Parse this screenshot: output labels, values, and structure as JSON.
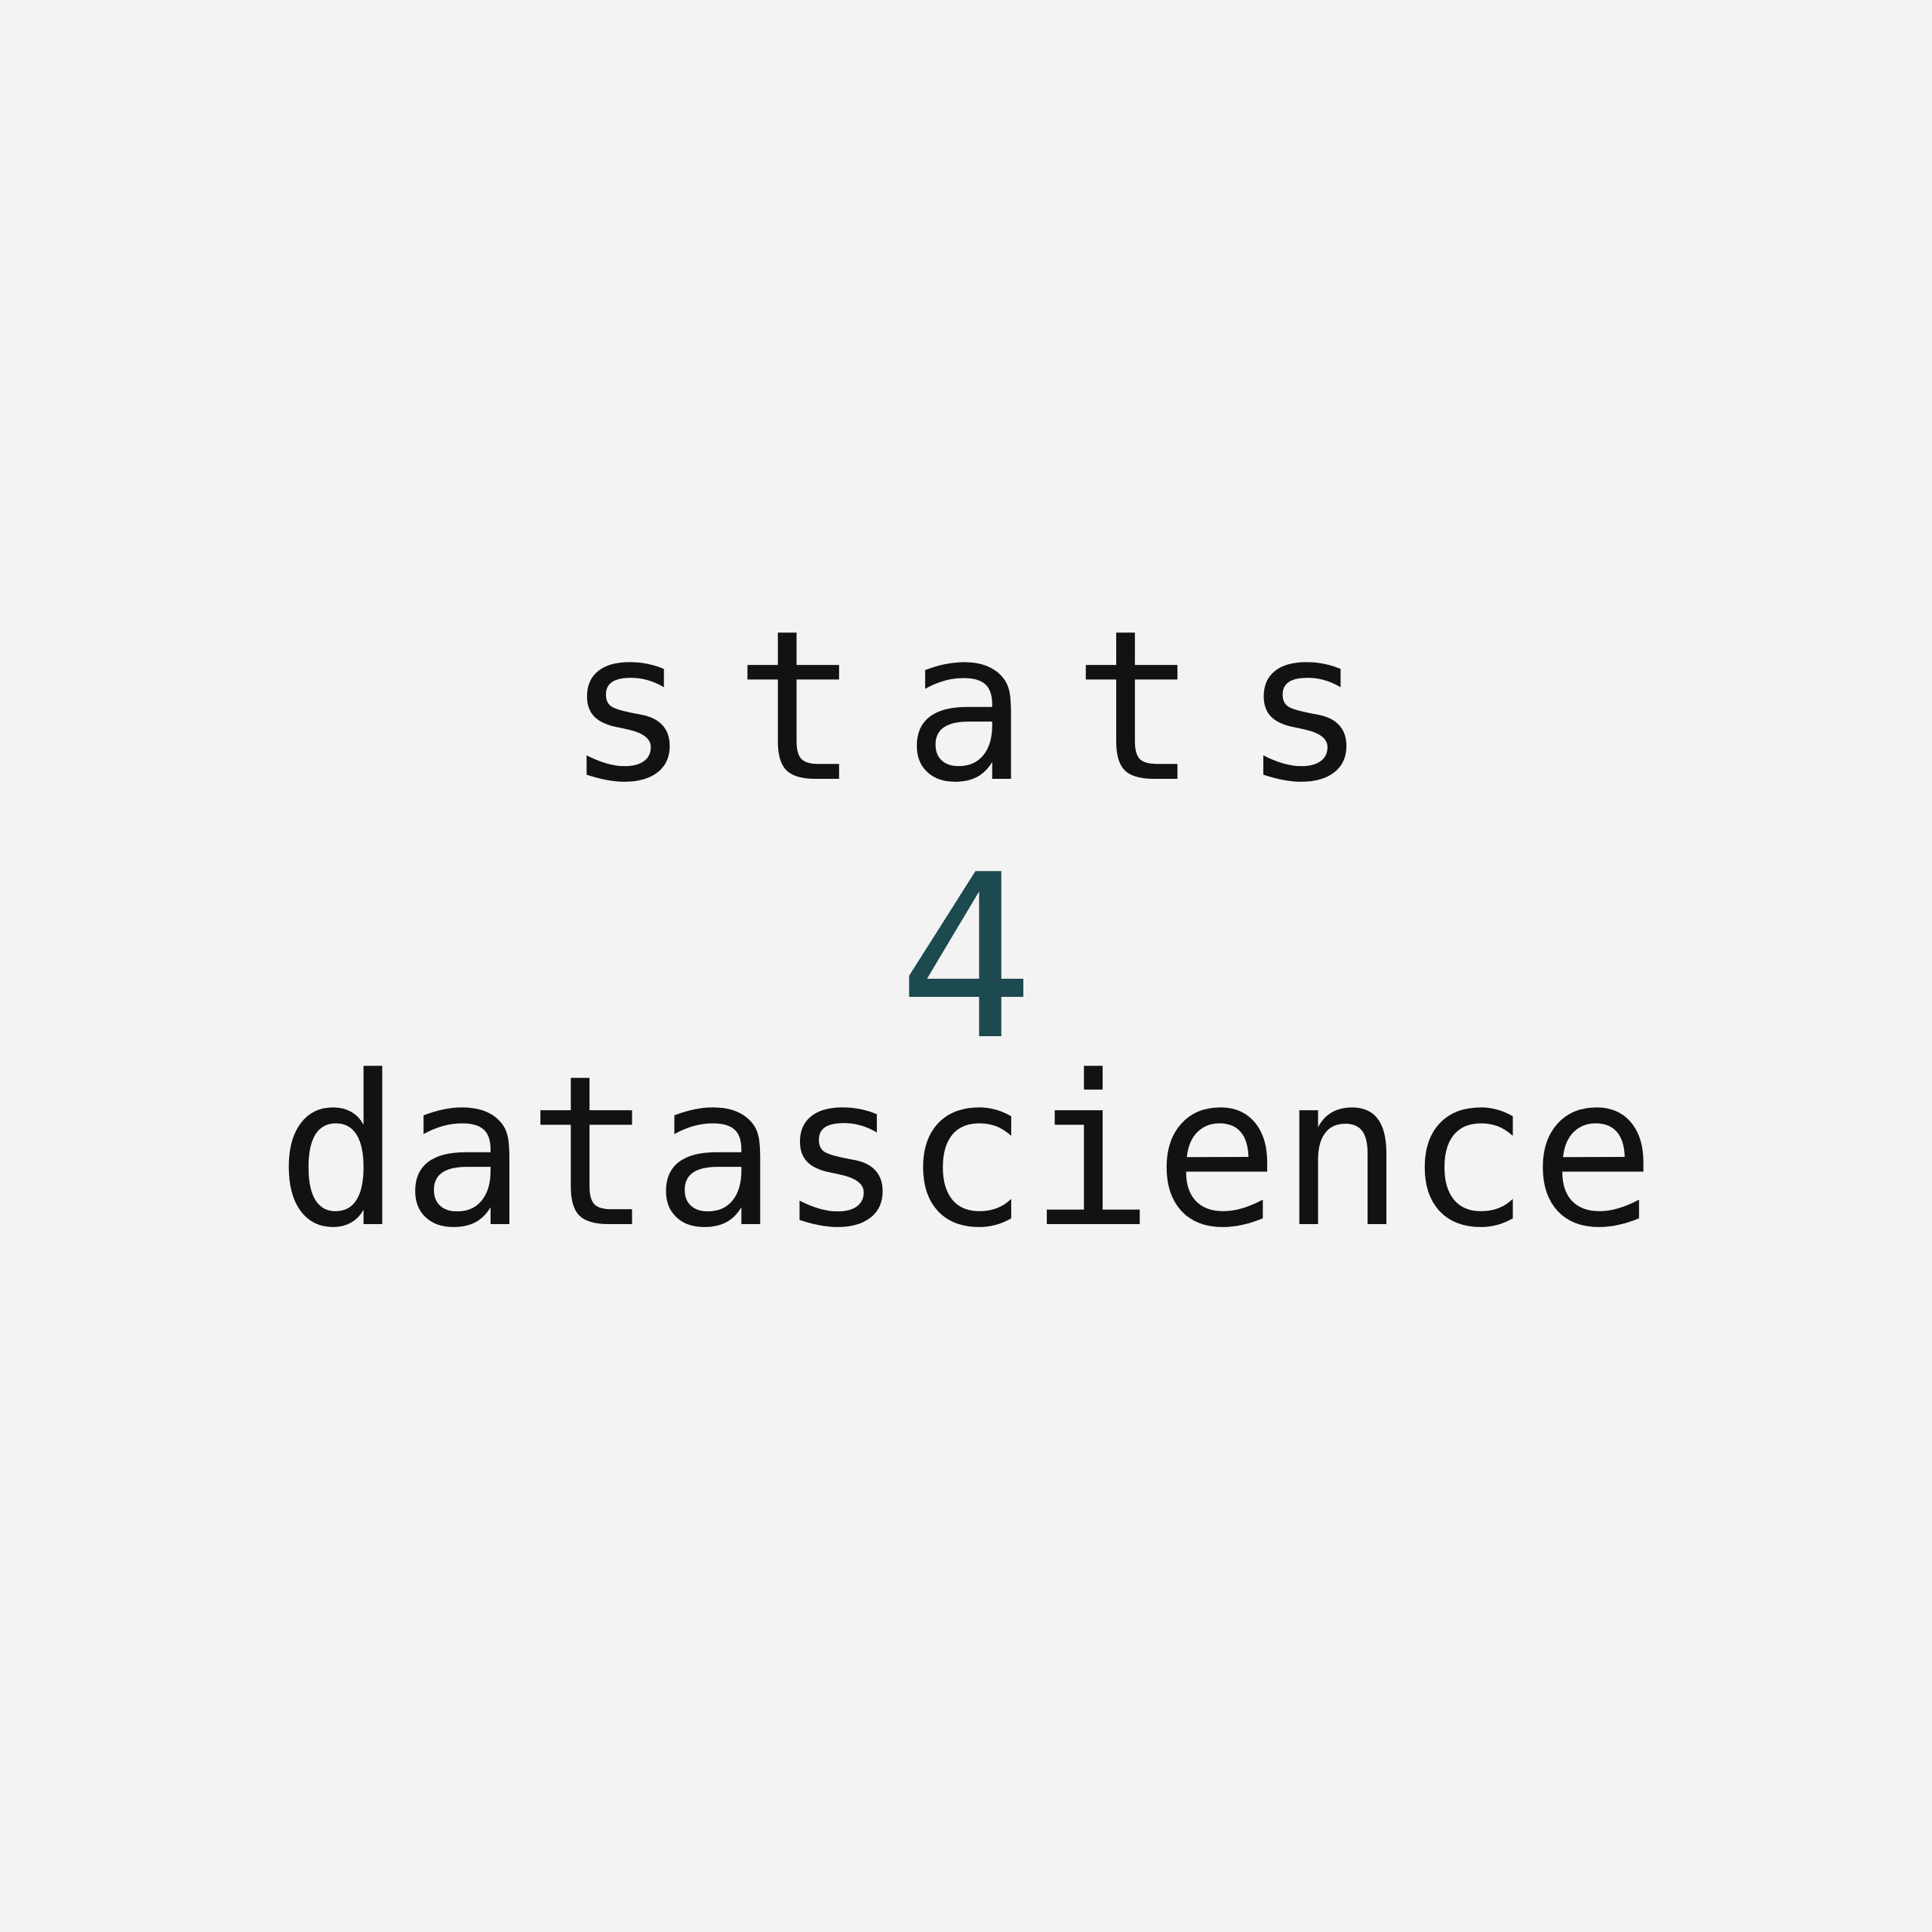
{
  "logo": {
    "line1": "stats",
    "line2": "4",
    "line3": "datascience"
  },
  "colors": {
    "background": "#f3f3f3",
    "text": "#121212",
    "accent": "#1c4a4e"
  }
}
